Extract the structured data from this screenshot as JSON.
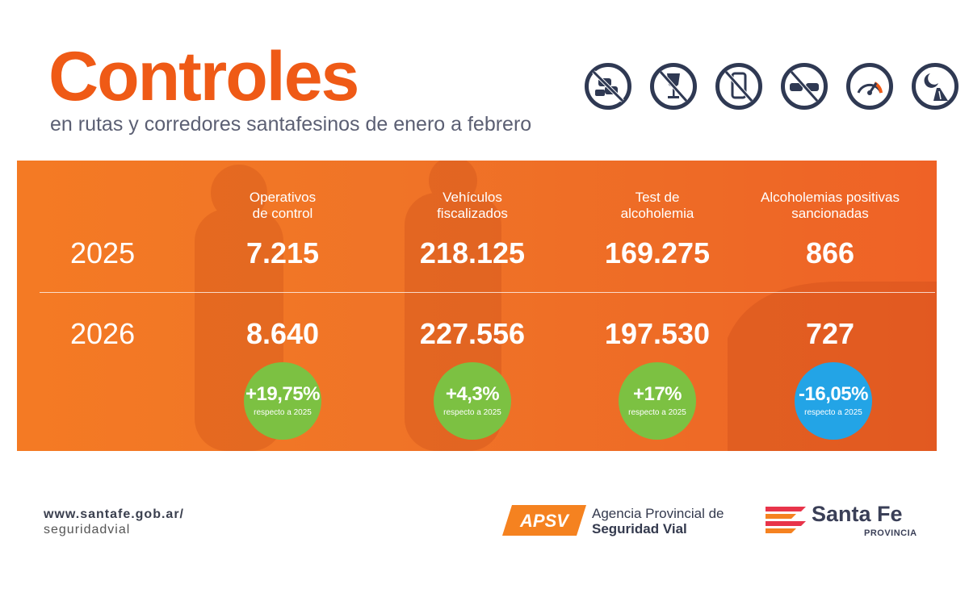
{
  "header": {
    "title": "Controles",
    "subtitle": "en rutas y corredores santafesinos de enero a febrero"
  },
  "icons": [
    "no-traffic-jam-icon",
    "no-alcohol-icon",
    "no-phone-icon",
    "no-overtaking-icon",
    "speedometer-icon",
    "night-road-icon"
  ],
  "table": {
    "headers": [
      {
        "line1": "Operativos",
        "line2": "de control"
      },
      {
        "line1": "Vehículos",
        "line2": "fiscalizados"
      },
      {
        "line1": "Test de",
        "line2": "alcoholemia"
      },
      {
        "line1": "Alcoholemias positivas",
        "line2": "sancionadas"
      }
    ],
    "rows": [
      {
        "year": "2025",
        "values": [
          "7.215",
          "218.125",
          "169.275",
          "866"
        ]
      },
      {
        "year": "2026",
        "values": [
          "8.640",
          "227.556",
          "197.530",
          "727"
        ]
      }
    ],
    "changes": [
      {
        "value": "+19,75%",
        "note": "respecto a 2025",
        "color": "#7cc142"
      },
      {
        "value": "+4,3%",
        "note": "respecto a 2025",
        "color": "#7cc142"
      },
      {
        "value": "+17%",
        "note": "respecto a 2025",
        "color": "#7cc142"
      },
      {
        "value": "-16,05%",
        "note": "respecto a 2025",
        "color": "#23a4e6"
      }
    ]
  },
  "footer": {
    "web_line1": "www.santafe.gob.ar/",
    "web_line2": "seguridadvial",
    "apsv_logo": "APSV",
    "apsv_line1": "Agencia Provincial de",
    "apsv_line2": "Seguridad Vial",
    "sf_name": "Santa Fe",
    "sf_sub": "PROVINCIA"
  },
  "colors": {
    "accent": "#ef5a16",
    "panel": "#f07427",
    "positive": "#7cc142",
    "negative": "#23a4e6",
    "navy": "#2f3953"
  }
}
